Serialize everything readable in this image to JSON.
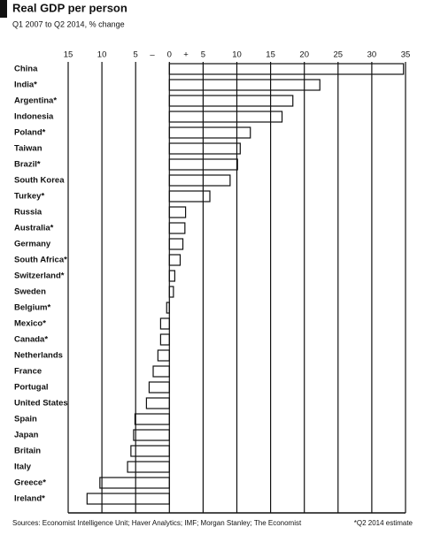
{
  "chart_data": {
    "type": "bar",
    "orientation": "horizontal",
    "title": "Real GDP per person",
    "subtitle": "Q1 2007 to Q2 2014, % change",
    "categories": [
      "China",
      "India*",
      "Argentina*",
      "Indonesia",
      "Poland*",
      "Taiwan",
      "Brazil*",
      "South Korea",
      "Turkey*",
      "Russia",
      "Australia*",
      "Germany",
      "South Africa*",
      "Switzerland*",
      "Sweden",
      "Belgium*",
      "Mexico*",
      "Canada*",
      "Netherlands",
      "France",
      "Portugal",
      "United States",
      "Spain",
      "Japan",
      "Britain",
      "Italy",
      "Greece*",
      "Ireland*"
    ],
    "values": [
      34.7,
      22.3,
      18.3,
      16.7,
      12,
      10.5,
      10.1,
      9,
      6,
      2.4,
      2.3,
      2,
      1.6,
      0.8,
      0.6,
      -0.4,
      -1.3,
      -1.3,
      -1.7,
      -2.4,
      -3,
      -3.4,
      -5.1,
      -5.3,
      -5.7,
      -6.2,
      -10.3,
      -12.2
    ],
    "color": "#ffffff",
    "stroke": "#111111",
    "xlim": [
      -15,
      35
    ],
    "xticks": [
      {
        "value": -15,
        "label": "15"
      },
      {
        "value": -10,
        "label": "10"
      },
      {
        "value": -5,
        "label": "5"
      },
      0,
      5,
      10,
      15,
      20,
      25,
      30,
      35
    ],
    "sign_labels": [
      "–",
      "+"
    ],
    "grid": true,
    "source": "Sources: Economist Intelligence Unit; Haver Analytics; IMF; Morgan Stanley; The Economist",
    "footnote": "*Q2 2014 estimate"
  }
}
